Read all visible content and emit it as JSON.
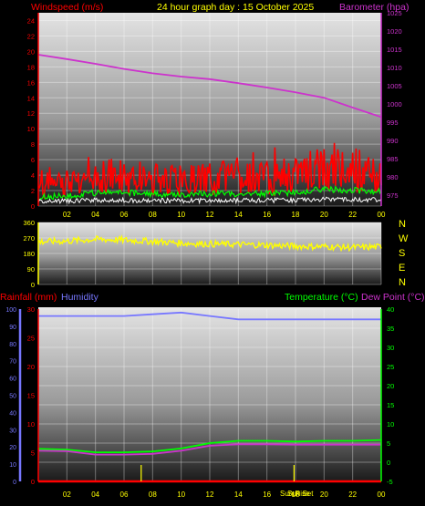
{
  "header": {
    "windspeed_label": "Windspeed (m/s)",
    "title": "24 hour graph day : 15 October 2025",
    "barometer_label": "Barometer (hpa)"
  },
  "lower_header": {
    "rainfall_label": "Rainfall (mm)",
    "humidity_label": "Humidity",
    "temperature_label": "Temperature (°C)",
    "dewpoint_label": "Dew Point (°C)"
  },
  "compass": [
    "N",
    "W",
    "S",
    "E",
    "N"
  ],
  "sun_labels": {
    "sunrise": "Sun Rise",
    "sunset": "Sun Set"
  },
  "colors": {
    "windspeed": "#ff0000",
    "gust_avg": "#00ff00",
    "wind_min": "#ffffff",
    "barometer": "#cc33cc",
    "direction": "#ffff00",
    "rainfall": "#ff0000",
    "humidity": "#7777ff",
    "temperature": "#00ff00",
    "dewpoint": "#cc33cc",
    "sun_marker": "#ffff00"
  },
  "chart_data": [
    {
      "type": "line",
      "name": "wind-barometer",
      "x_ticks": [
        "02",
        "04",
        "06",
        "08",
        "10",
        "12",
        "14",
        "16",
        "18",
        "20",
        "22",
        "00"
      ],
      "x": [
        0,
        2,
        4,
        6,
        8,
        10,
        12,
        14,
        16,
        18,
        20,
        22,
        24
      ],
      "left_axis": {
        "label": "Windspeed (m/s)",
        "range": [
          0,
          25
        ],
        "ticks": [
          0,
          2,
          4,
          6,
          8,
          10,
          12,
          14,
          16,
          18,
          20,
          22,
          24
        ]
      },
      "right_axis": {
        "label": "Barometer (hpa)",
        "range": [
          972,
          1025
        ],
        "ticks": [
          975,
          980,
          985,
          990,
          995,
          1000,
          1005,
          1010,
          1015,
          1020,
          1025
        ]
      },
      "series": [
        {
          "name": "Windspeed (m/s)",
          "axis": "left",
          "style": "noisy-band",
          "values": [
            2.5,
            3,
            3.8,
            3.8,
            3.5,
            3.2,
            3.6,
            3.5,
            3.6,
            4,
            4.8,
            4.6,
            4.2
          ]
        },
        {
          "name": "Barometer (hpa)",
          "axis": "right",
          "values": [
            1013.5,
            1012.3,
            1011,
            1009.6,
            1008.4,
            1007.5,
            1006.8,
            1005.7,
            1004.5,
            1003.2,
            1001.7,
            999,
            996.4
          ]
        }
      ]
    },
    {
      "type": "scatter",
      "name": "wind-direction",
      "x_ticks": [
        "02",
        "04",
        "06",
        "08",
        "10",
        "12",
        "14",
        "16",
        "18",
        "20",
        "22",
        "00"
      ],
      "y_axis": {
        "range": [
          0,
          360
        ],
        "ticks": [
          0,
          90,
          180,
          270,
          360
        ]
      },
      "x": [
        0,
        2,
        4,
        6,
        8,
        10,
        12,
        14,
        16,
        18,
        20,
        22,
        24
      ],
      "series": [
        {
          "axis": "left",
          "values": [
            248,
            252,
            262,
            258,
            250,
            240,
            235,
            232,
            228,
            222,
            220,
            215,
            218
          ]
        }
      ]
    },
    {
      "type": "line",
      "name": "rain-humidity-temperature",
      "x_ticks": [
        "02",
        "04",
        "06",
        "08",
        "10",
        "12",
        "14",
        "16",
        "18",
        "20",
        "22",
        "00"
      ],
      "x": [
        0,
        2,
        4,
        6,
        8,
        10,
        12,
        14,
        16,
        18,
        20,
        22,
        24
      ],
      "left_axis": {
        "label": "Rainfall (mm)",
        "range": [
          0,
          30
        ],
        "ticks": [
          0,
          5,
          10,
          15,
          20,
          25,
          30
        ]
      },
      "humidity_axis": {
        "label": "Humidity",
        "range": [
          0,
          100
        ],
        "ticks": [
          0,
          10,
          20,
          30,
          40,
          50,
          60,
          70,
          80,
          90,
          100
        ]
      },
      "right_axis": {
        "label": "Temperature (°C)",
        "range": [
          -5,
          40
        ],
        "ticks": [
          -5,
          0,
          5,
          10,
          15,
          20,
          25,
          30,
          35,
          40
        ]
      },
      "series": [
        {
          "name": "Rainfall (mm)",
          "axis": "left",
          "values": [
            0,
            0,
            0,
            0,
            0,
            0,
            0,
            0,
            0,
            0,
            0,
            0,
            0
          ]
        },
        {
          "name": "Humidity",
          "axis": "humidity",
          "values": [
            96,
            96,
            96,
            96,
            97,
            98,
            96,
            94,
            94,
            94,
            94,
            94,
            94
          ]
        },
        {
          "name": "Temperature (°C)",
          "axis": "right",
          "values": [
            3.5,
            3.3,
            2.6,
            2.6,
            2.8,
            3.6,
            5.0,
            5.6,
            5.6,
            5.4,
            5.6,
            5.6,
            5.8
          ]
        },
        {
          "name": "Dew Point (°C)",
          "axis": "right",
          "values": [
            3.0,
            2.9,
            2.0,
            2.0,
            2.2,
            3.0,
            4.3,
            4.7,
            4.7,
            4.6,
            4.6,
            4.6,
            4.6
          ]
        }
      ],
      "markers": [
        {
          "label": "Sun Rise",
          "x": 7.2
        },
        {
          "label": "Sun Set",
          "x": 17.9
        }
      ]
    }
  ]
}
